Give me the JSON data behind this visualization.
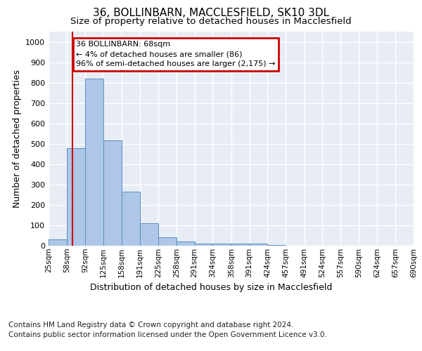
{
  "title1": "36, BOLLINBARN, MACCLESFIELD, SK10 3DL",
  "title2": "Size of property relative to detached houses in Macclesfield",
  "xlabel": "Distribution of detached houses by size in Macclesfield",
  "ylabel": "Number of detached properties",
  "footnote1": "Contains HM Land Registry data © Crown copyright and database right 2024.",
  "footnote2": "Contains public sector information licensed under the Open Government Licence v3.0.",
  "annotation_line1": "36 BOLLINBARN: 68sqm",
  "annotation_line2": "← 4% of detached houses are smaller (86)",
  "annotation_line3": "96% of semi-detached houses are larger (2,175) →",
  "bar_left_edges": [
    25,
    58,
    92,
    125,
    158,
    191,
    225,
    258,
    291,
    324,
    358,
    391,
    424,
    457,
    491,
    524,
    557,
    590,
    624,
    657
  ],
  "bar_widths": [
    33,
    34,
    33,
    33,
    33,
    34,
    33,
    33,
    33,
    34,
    33,
    33,
    33,
    34,
    33,
    33,
    33,
    34,
    33,
    33
  ],
  "bar_heights": [
    30,
    480,
    820,
    515,
    265,
    110,
    40,
    20,
    12,
    10,
    10,
    10,
    2,
    1,
    1,
    1,
    1,
    1,
    1,
    1
  ],
  "bar_color": "#aec6e8",
  "bar_edgecolor": "#5a8fc0",
  "marker_x": 68,
  "marker_color": "#cc0000",
  "ylim": [
    0,
    1050
  ],
  "yticks": [
    0,
    100,
    200,
    300,
    400,
    500,
    600,
    700,
    800,
    900,
    1000
  ],
  "xlim": [
    25,
    690
  ],
  "xtick_labels": [
    "25sqm",
    "58sqm",
    "92sqm",
    "125sqm",
    "158sqm",
    "191sqm",
    "225sqm",
    "258sqm",
    "291sqm",
    "324sqm",
    "358sqm",
    "391sqm",
    "424sqm",
    "457sqm",
    "491sqm",
    "524sqm",
    "557sqm",
    "590sqm",
    "624sqm",
    "657sqm",
    "690sqm"
  ],
  "xtick_positions": [
    25,
    58,
    92,
    125,
    158,
    191,
    225,
    258,
    291,
    324,
    358,
    391,
    424,
    457,
    491,
    524,
    557,
    590,
    624,
    657,
    690
  ],
  "background_color": "#e8edf5",
  "grid_color": "#ffffff",
  "annotation_box_color": "#cc0000",
  "title1_fontsize": 11,
  "title2_fontsize": 9.5,
  "axis_label_fontsize": 9,
  "tick_fontsize": 7.5,
  "footnote_fontsize": 7.5
}
